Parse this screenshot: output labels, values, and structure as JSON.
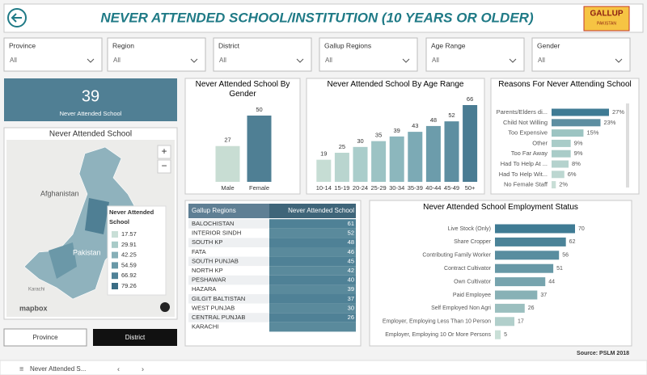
{
  "header": {
    "title": "NEVER ATTENDED SCHOOL/INSTITUTION (10 YEARS OR OLDER)"
  },
  "logo": {
    "name": "GALLUP",
    "subtitle": "PAKISTAN"
  },
  "filters": [
    {
      "label": "Province",
      "value": "All"
    },
    {
      "label": "Region",
      "value": "All"
    },
    {
      "label": "District",
      "value": "All"
    },
    {
      "label": "Gallup Regions",
      "value": "All"
    },
    {
      "label": "Age Range",
      "value": "All"
    },
    {
      "label": "Gender",
      "value": "All"
    }
  ],
  "card": {
    "value": 39,
    "label": "Never Attended School"
  },
  "map": {
    "title": "Never Attended School",
    "labels": [
      "Afghanistan",
      "Pakistan",
      "Karachi",
      "mapbox"
    ],
    "legend": {
      "title": "Never Attended School",
      "values": [
        17.57,
        29.91,
        42.25,
        54.59,
        66.92,
        79.26
      ]
    }
  },
  "buttons": [
    "Province",
    "District"
  ],
  "chart_data": [
    {
      "type": "bar",
      "title": "Never Attended School By Gender",
      "categories": [
        "Male",
        "Female"
      ],
      "values": [
        27,
        50
      ],
      "colors": [
        "#c8ddd3",
        "#4f7f94"
      ]
    },
    {
      "type": "bar",
      "title": "Never Attended School By Age Range",
      "categories": [
        "10-14",
        "15-19",
        "20-24",
        "25-29",
        "30-34",
        "35-39",
        "40-44",
        "45-49",
        "50+"
      ],
      "values": [
        19,
        25,
        30,
        35,
        39,
        43,
        48,
        52,
        66
      ],
      "colors": [
        "#c6ddd4",
        "#b9d5cf",
        "#aacdcb",
        "#9cc3c4",
        "#8cb7bd",
        "#7caab5",
        "#6c9cab",
        "#5d8ea1",
        "#4a7c93"
      ]
    },
    {
      "type": "hbar",
      "title": "Reasons For Never Attending School",
      "categories": [
        "Parents/Elders di...",
        "Child Not Willing",
        "Too Expensive",
        "Other",
        "Too Far Away",
        "Had To Help At ...",
        "Had To Help Wit...",
        "No Female Staff"
      ],
      "values": [
        27,
        23,
        15,
        9,
        9,
        8,
        6,
        2
      ],
      "value_labels": [
        "27%",
        "23%",
        "15%",
        "9%",
        "9%",
        "8%",
        "6%",
        "2%"
      ],
      "colors": [
        "#3f7b94",
        "#5d8ea1",
        "#9cc4c2",
        "#a9ccc8",
        "#a9ccc8",
        "#b4d2cd",
        "#bcd7d1",
        "#c8ded6"
      ]
    },
    {
      "type": "hbar",
      "title": "Never Attended School Employment Status",
      "categories": [
        "Live Stock (Only)",
        "Share Cropper",
        "Contributing Family Worker",
        "Contract Cultivator",
        "Own Cultivator",
        "Paid Employee",
        "Self Employed Non Agri",
        "Employer, Employing Less Than 10 Person",
        "Employer, Employing 10 Or More Persons"
      ],
      "values": [
        70,
        62,
        56,
        51,
        44,
        37,
        26,
        17,
        5
      ],
      "colors": [
        "#3f7b94",
        "#4b8398",
        "#588d9f",
        "#6798a6",
        "#77a4ae",
        "#88b1b6",
        "#9bbfbf",
        "#b1cfcb",
        "#c9dfd7"
      ]
    }
  ],
  "table": {
    "columns": [
      "Gallup Regions",
      "Never Attended School"
    ],
    "rows": [
      [
        "BALOCHISTAN",
        61
      ],
      [
        "INTERIOR SINDH",
        52
      ],
      [
        "SOUTH KP",
        48
      ],
      [
        "FATA",
        46
      ],
      [
        "SOUTH PUNJAB",
        45
      ],
      [
        "NORTH KP",
        42
      ],
      [
        "PESHAWAR",
        40
      ],
      [
        "HAZARA",
        39
      ],
      [
        "GILGIT BALTISTAN",
        37
      ],
      [
        "WEST PUNJAB",
        30
      ],
      [
        "CENTRAL PUNJAB",
        26
      ],
      [
        "KARACHI",
        null
      ]
    ]
  },
  "source": "Source: PSLM 2018",
  "tabs": [
    "Never Attended S..."
  ]
}
